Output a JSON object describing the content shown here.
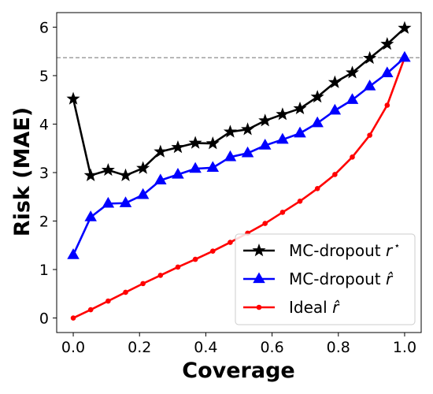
{
  "chart_data": {
    "type": "line",
    "xlabel": "Coverage",
    "ylabel": "Risk (MAE)",
    "xlim": [
      -0.05,
      1.05
    ],
    "ylim": [
      -0.3,
      6.3
    ],
    "xticks": [
      "0.0",
      "0.2",
      "0.4",
      "0.6",
      "0.8",
      "1.0"
    ],
    "yticks": [
      "0",
      "1",
      "2",
      "3",
      "4",
      "5",
      "6"
    ],
    "grid": false,
    "legend_position": "bottom-right",
    "reference_line": {
      "y": 5.37,
      "style": "dashed",
      "color": "#808080"
    },
    "x": [
      0.0,
      0.0526,
      0.1053,
      0.1579,
      0.2105,
      0.2632,
      0.3158,
      0.3684,
      0.4211,
      0.4737,
      0.5263,
      0.5789,
      0.6316,
      0.6842,
      0.7368,
      0.7895,
      0.8421,
      0.8947,
      0.9474,
      1.0
    ],
    "series": [
      {
        "name": "MC-dropout r*",
        "legend_main": "MC-dropout ",
        "legend_sym": "r",
        "legend_sup": "⋆",
        "color": "#000000",
        "marker": "star",
        "values": [
          4.52,
          2.94,
          3.05,
          2.94,
          3.09,
          3.43,
          3.52,
          3.61,
          3.6,
          3.84,
          3.89,
          4.07,
          4.2,
          4.32,
          4.56,
          4.86,
          5.06,
          5.36,
          5.65,
          5.98
        ]
      },
      {
        "name": "MC-dropout r̂",
        "legend_main": "MC-dropout ",
        "legend_sym": "r̂",
        "legend_sup": "",
        "color": "#0000ff",
        "marker": "triangle",
        "values": [
          1.3,
          2.08,
          2.36,
          2.37,
          2.54,
          2.84,
          2.96,
          3.08,
          3.1,
          3.32,
          3.4,
          3.56,
          3.68,
          3.81,
          4.02,
          4.28,
          4.5,
          4.78,
          5.05,
          5.37
        ]
      },
      {
        "name": "Ideal r̂",
        "legend_main": "Ideal ",
        "legend_sym": "r̂",
        "legend_sup": "",
        "color": "#ff0000",
        "marker": "circle",
        "values": [
          0.0,
          0.17,
          0.35,
          0.53,
          0.71,
          0.88,
          1.05,
          1.21,
          1.38,
          1.56,
          1.75,
          1.95,
          2.18,
          2.41,
          2.67,
          2.96,
          3.32,
          3.77,
          4.39,
          5.37
        ]
      }
    ]
  }
}
